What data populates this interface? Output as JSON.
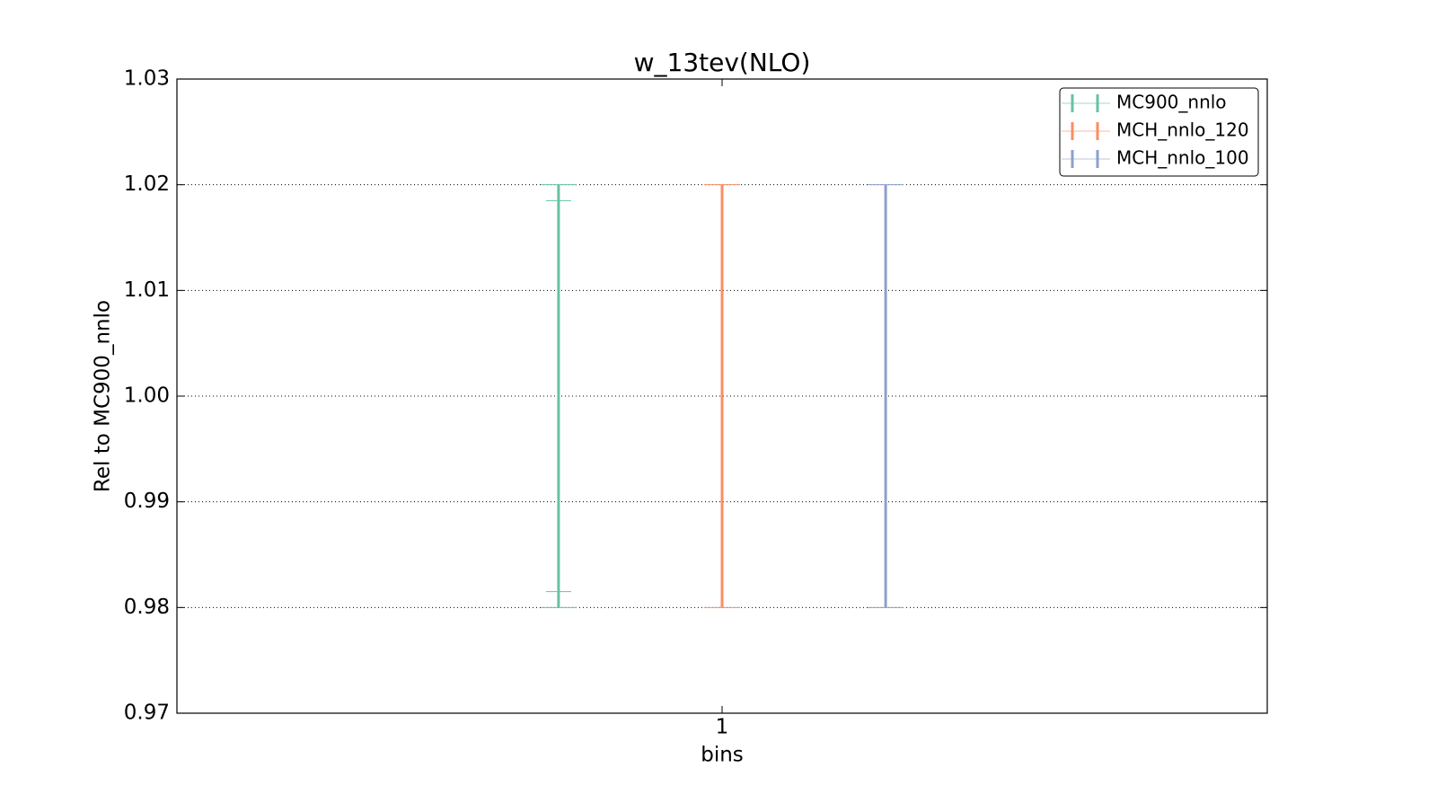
{
  "chart_data": {
    "type": "errorbar",
    "title": "w_13tev(NLO)",
    "x_label": "bins",
    "y_label": "Rel to MC900_nnlo",
    "xlim": [
      0.5,
      1.5
    ],
    "xticks": [
      1
    ],
    "ylim": [
      0.97,
      1.03
    ],
    "yticks": [
      0.97,
      0.98,
      0.99,
      {
        "value": 1,
        "label": "1.00"
      },
      1.01,
      1.02,
      1.03
    ],
    "grid": true,
    "legend": "upper right",
    "series": [
      {
        "name": "MC900_nnlo",
        "color": "#66c2a5",
        "x": [
          0.85
        ],
        "values": [
          1
        ],
        "errors": [
          0.02
        ],
        "inner_errors": [
          0.0185
        ]
      },
      {
        "name": "MCH_nnlo_120",
        "color": "#fc8d62",
        "x": [
          1
        ],
        "values": [
          1
        ],
        "errors": [
          0.02
        ]
      },
      {
        "name": "MCH_nnlo_100",
        "color": "#8da0cb",
        "x": [
          1.15
        ],
        "values": [
          1
        ],
        "errors": [
          0.02
        ]
      }
    ]
  }
}
